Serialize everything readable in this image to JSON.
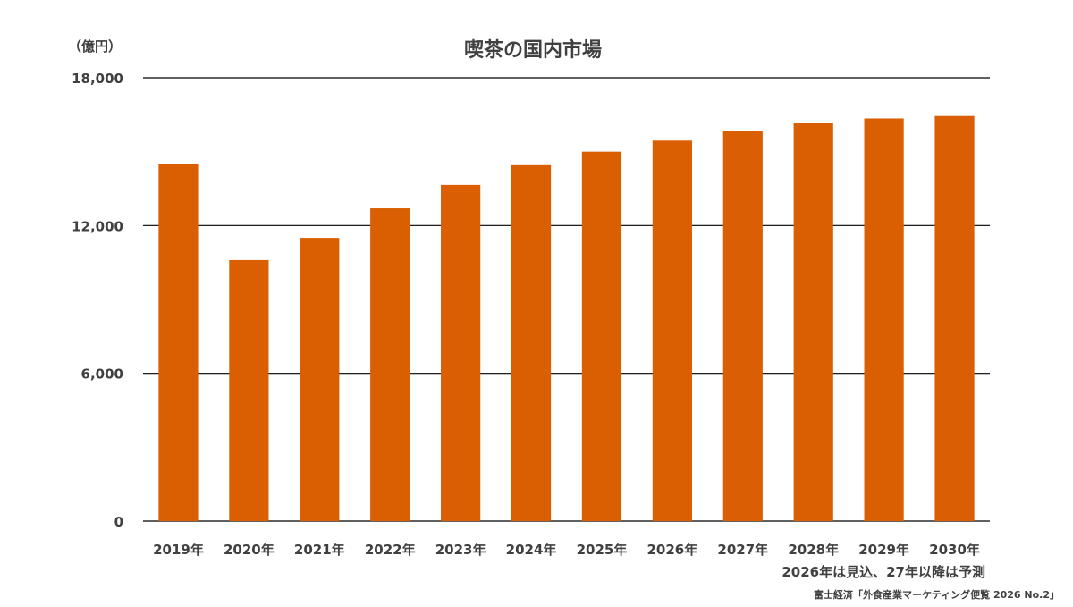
{
  "chart_data": {
    "type": "bar",
    "title": "喫茶の国内市場",
    "unit_label": "（億円）",
    "categories": [
      "2019年",
      "2020年",
      "2021年",
      "2022年",
      "2023年",
      "2024年",
      "2025年",
      "2026年",
      "2027年",
      "2028年",
      "2029年",
      "2030年"
    ],
    "values": [
      14500,
      10600,
      11500,
      12700,
      13650,
      14450,
      15000,
      15450,
      15850,
      16150,
      16350,
      16450
    ],
    "ylim": [
      0,
      18000
    ],
    "yticks": [
      "0",
      "6,000",
      "12,000",
      "18,000"
    ],
    "ytick_values": [
      0,
      6000,
      12000,
      18000
    ],
    "grid": true,
    "legend": "none",
    "bar_color": "#D95F02",
    "annotation": "2026年は見込、27年以降は予測",
    "source": "富士経済「外食産業マーケティング便覧 2026 No.2」"
  }
}
